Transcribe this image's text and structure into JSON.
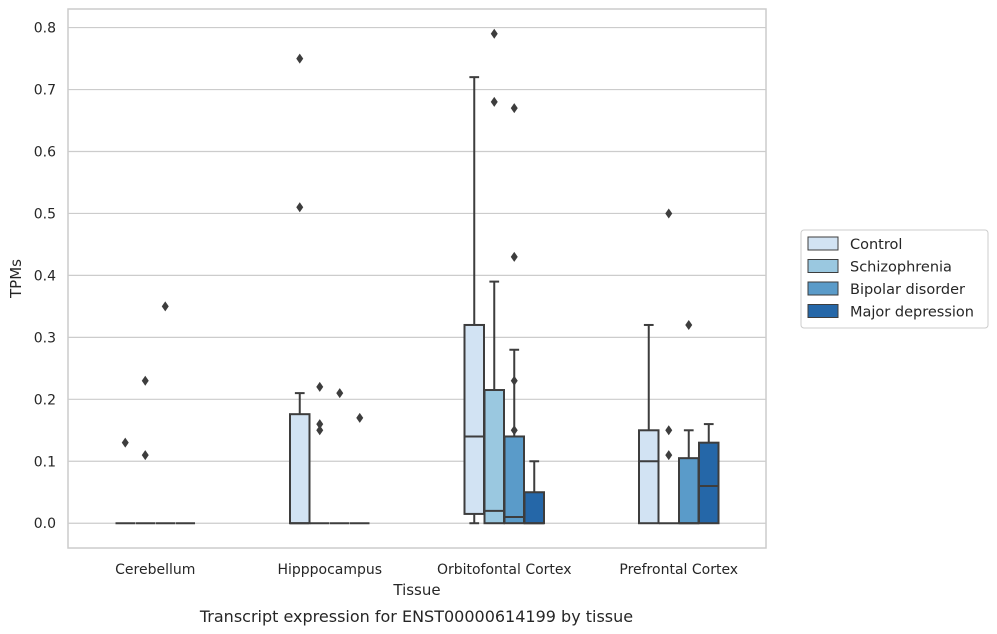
{
  "chart_data": {
    "type": "box",
    "caption": "Transcript expression for ENST00000614199 by tissue",
    "xlabel": "Tissue",
    "ylabel": "TPMs",
    "ylim": [
      -0.04,
      0.83
    ],
    "yticks": [
      0.0,
      0.1,
      0.2,
      0.3,
      0.4,
      0.5,
      0.6,
      0.7,
      0.8
    ],
    "ytick_labels": [
      "0.0",
      "0.1",
      "0.2",
      "0.3",
      "0.4",
      "0.5",
      "0.6",
      "0.7",
      "0.8"
    ],
    "grid": "horizontal",
    "legend_position": "right",
    "categories": [
      "Cerebellum",
      "Hipppocampus",
      "Orbitofontal Cortex",
      "Prefrontal Cortex"
    ],
    "series": [
      {
        "name": "Control",
        "color": "#d2e3f3",
        "boxes": [
          {
            "q1": 0.0,
            "median": 0.0,
            "q3": 0.0,
            "whisker_low": 0.0,
            "whisker_high": 0.0,
            "outliers": [
              0.13
            ]
          },
          {
            "q1": 0.0,
            "median": 0.0,
            "q3": 0.176,
            "whisker_low": 0.0,
            "whisker_high": 0.21,
            "outliers": [
              0.75,
              0.51
            ]
          },
          {
            "q1": 0.015,
            "median": 0.14,
            "q3": 0.32,
            "whisker_low": 0.0,
            "whisker_high": 0.72,
            "outliers": []
          },
          {
            "q1": 0.0,
            "median": 0.1,
            "q3": 0.15,
            "whisker_low": 0.0,
            "whisker_high": 0.32,
            "outliers": []
          }
        ]
      },
      {
        "name": "Schizophrenia",
        "color": "#9ac8e0",
        "boxes": [
          {
            "q1": 0.0,
            "median": 0.0,
            "q3": 0.0,
            "whisker_low": 0.0,
            "whisker_high": 0.0,
            "outliers": [
              0.23,
              0.11
            ]
          },
          {
            "q1": 0.0,
            "median": 0.0,
            "q3": 0.0,
            "whisker_low": 0.0,
            "whisker_high": 0.0,
            "outliers": [
              0.22,
              0.16,
              0.15
            ]
          },
          {
            "q1": 0.0,
            "median": 0.02,
            "q3": 0.215,
            "whisker_low": 0.0,
            "whisker_high": 0.39,
            "outliers": [
              0.79,
              0.68
            ]
          },
          {
            "q1": 0.0,
            "median": 0.0,
            "q3": 0.0,
            "whisker_low": 0.0,
            "whisker_high": 0.0,
            "outliers": [
              0.5,
              0.15,
              0.11
            ]
          }
        ]
      },
      {
        "name": "Bipolar disorder",
        "color": "#5a9bc9",
        "boxes": [
          {
            "q1": 0.0,
            "median": 0.0,
            "q3": 0.0,
            "whisker_low": 0.0,
            "whisker_high": 0.0,
            "outliers": [
              0.35
            ]
          },
          {
            "q1": 0.0,
            "median": 0.0,
            "q3": 0.0,
            "whisker_low": 0.0,
            "whisker_high": 0.0,
            "outliers": [
              0.21
            ]
          },
          {
            "q1": 0.0,
            "median": 0.01,
            "q3": 0.14,
            "whisker_low": 0.0,
            "whisker_high": 0.28,
            "outliers": [
              0.67,
              0.43,
              0.23,
              0.15
            ]
          },
          {
            "q1": 0.0,
            "median": 0.0,
            "q3": 0.105,
            "whisker_low": 0.0,
            "whisker_high": 0.15,
            "outliers": [
              0.32
            ]
          }
        ]
      },
      {
        "name": "Major depression",
        "color": "#2567a8",
        "boxes": [
          {
            "q1": 0.0,
            "median": 0.0,
            "q3": 0.0,
            "whisker_low": 0.0,
            "whisker_high": 0.0,
            "outliers": []
          },
          {
            "q1": 0.0,
            "median": 0.0,
            "q3": 0.0,
            "whisker_low": 0.0,
            "whisker_high": 0.0,
            "outliers": [
              0.17
            ]
          },
          {
            "q1": 0.0,
            "median": 0.0,
            "q3": 0.05,
            "whisker_low": 0.0,
            "whisker_high": 0.1,
            "outliers": []
          },
          {
            "q1": 0.0,
            "median": 0.06,
            "q3": 0.13,
            "whisker_low": 0.0,
            "whisker_high": 0.16,
            "outliers": []
          }
        ]
      }
    ]
  }
}
